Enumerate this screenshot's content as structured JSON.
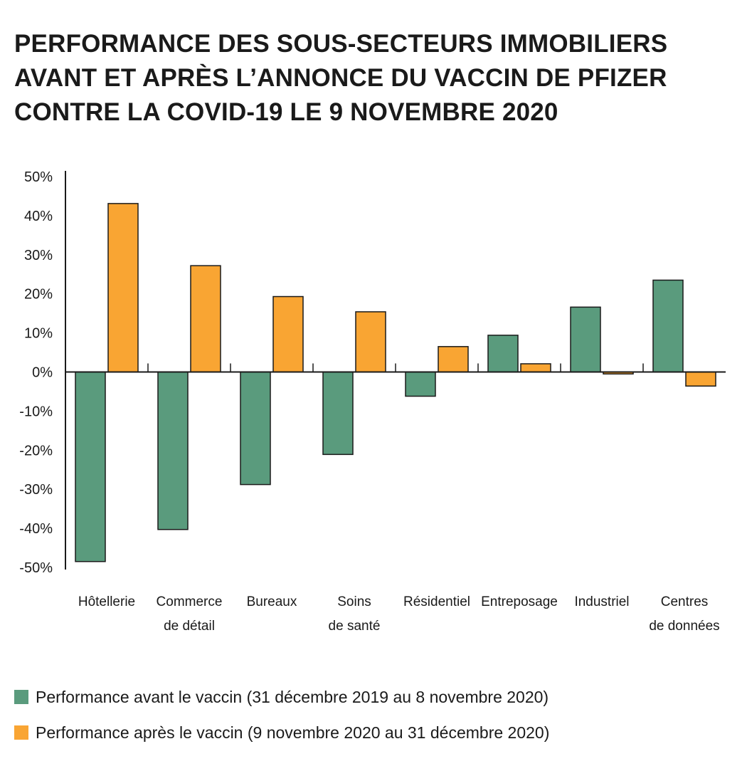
{
  "title": {
    "lines": [
      "PERFORMANCE DES SOUS-SECTEURS IMMOBILIERS",
      "AVANT ET APRÈS L’ANNONCE DU VACCIN DE PFIZER",
      "CONTRE LA COVID-19 LE 9 NOVEMBRE 2020"
    ]
  },
  "colors": {
    "before": "#5a9b7d",
    "after": "#f9a533",
    "axis": "#1a1a1a"
  },
  "chart_data": {
    "type": "bar",
    "title": "PERFORMANCE DES SOUS-SECTEURS IMMOBILIERS AVANT ET APRÈS L’ANNONCE DU VACCIN DE PFIZER CONTRE LA COVID-19 LE 9 NOVEMBRE 2020",
    "categories": [
      [
        "Hôtellerie"
      ],
      [
        "Commerce",
        "de détail"
      ],
      [
        "Bureaux"
      ],
      [
        "Soins",
        "de santé"
      ],
      [
        "Résidentiel"
      ],
      [
        "Entreposage"
      ],
      [
        "Industriel"
      ],
      [
        "Centres",
        "de données"
      ]
    ],
    "series": [
      {
        "name": "Performance avant le vaccin (31 décembre 2019 au 8 novembre 2020)",
        "values": [
          -48.5,
          -40.3,
          -28.8,
          -21.1,
          -6.2,
          9.4,
          16.6,
          23.5
        ]
      },
      {
        "name": "Performance après le vaccin (9 novembre 2020 au 31 décembre 2020)",
        "values": [
          43.1,
          27.2,
          19.3,
          15.4,
          6.5,
          2.1,
          -0.5,
          -3.6
        ]
      }
    ],
    "yticks": [
      "50%",
      "40%",
      "30%",
      "20%",
      "10%",
      "0%",
      "-10%",
      "-20%",
      "-30%",
      "-40%",
      "-50%"
    ],
    "ylim": [
      -50,
      50
    ],
    "xlabel": "",
    "ylabel": "",
    "grid": false,
    "legend_position": "bottom-left"
  }
}
